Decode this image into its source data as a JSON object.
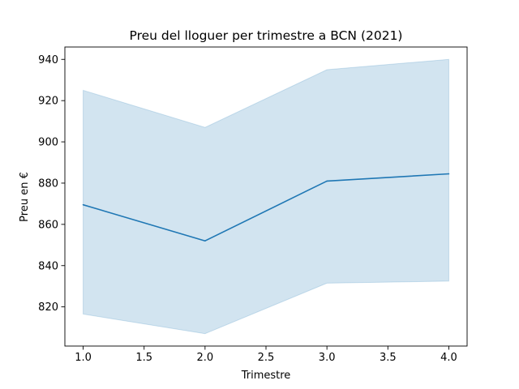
{
  "chart_data": {
    "type": "line",
    "title": "Preu del lloguer per trimestre a BCN (2021)",
    "xlabel": "Trimestre",
    "ylabel": "Preu en €",
    "xlim": [
      0.85,
      4.15
    ],
    "ylim": [
      801,
      946
    ],
    "xticks": [
      "1.0",
      "1.5",
      "2.0",
      "2.5",
      "3.0",
      "3.5",
      "4.0"
    ],
    "xtick_values": [
      1.0,
      1.5,
      2.0,
      2.5,
      3.0,
      3.5,
      4.0
    ],
    "yticks": [
      "820",
      "840",
      "860",
      "880",
      "900",
      "920",
      "940"
    ],
    "ytick_values": [
      820,
      840,
      860,
      880,
      900,
      920,
      940
    ],
    "grid": false,
    "colors": {
      "line": "#1f77b4",
      "band": "#1f77b4"
    },
    "series": [
      {
        "x": [
          1,
          2,
          3,
          4
        ],
        "values": [
          869.5,
          852,
          881,
          884.5
        ],
        "ci_lower": [
          816.5,
          807,
          831.5,
          832.5
        ],
        "ci_upper": [
          925,
          907,
          935,
          940
        ]
      }
    ]
  }
}
